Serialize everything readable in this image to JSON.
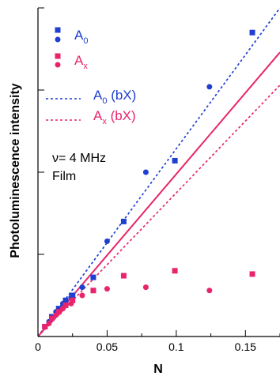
{
  "chart_data": {
    "type": "scatter",
    "xlabel": "N",
    "ylabel": "Photoluminescence intensity",
    "xlim": [
      0,
      0.175
    ],
    "ylim": [
      0,
      1.0
    ],
    "x_ticks": [
      {
        "value": 0,
        "label": "0"
      },
      {
        "value": 0.05,
        "label": "0.05"
      },
      {
        "value": 0.1,
        "label": "0.1"
      },
      {
        "value": 0.15,
        "label": "0.15"
      }
    ],
    "y_ticks": [
      0,
      0.25,
      0.5,
      0.75,
      1.0
    ],
    "x_minor_ticks": [
      0.025,
      0.075,
      0.125,
      0.175
    ],
    "colors": {
      "A0": "#1f3fd1",
      "Ax": "#e8246c"
    },
    "legend": {
      "A0_base": "A",
      "A0_sub": "0",
      "Ax_base": "A",
      "Ax_sub": "x",
      "A0_line_base": "A",
      "A0_line_sub": "0",
      "A0_line_suffix": " (bX)",
      "Ax_line_base": "A",
      "Ax_line_sub": "x",
      "Ax_line_suffix": " (bX)"
    },
    "annotation": {
      "line1": "ν= 4 MHz",
      "line2": "Film"
    },
    "series": [
      {
        "key": "A0_squares",
        "color": "#1f3fd1",
        "marker": "square",
        "x": [
          0.005,
          0.01,
          0.015,
          0.02,
          0.025,
          0.04,
          0.062,
          0.099,
          0.155
        ],
        "y": [
          0.03,
          0.06,
          0.085,
          0.11,
          0.125,
          0.18,
          0.35,
          0.535,
          0.925
        ]
      },
      {
        "key": "A0_circles",
        "color": "#1f3fd1",
        "marker": "circle",
        "x": [
          0.008,
          0.013,
          0.018,
          0.024,
          0.032,
          0.05,
          0.078,
          0.124
        ],
        "y": [
          0.045,
          0.075,
          0.1,
          0.12,
          0.15,
          0.29,
          0.5,
          0.76
        ]
      },
      {
        "key": "Ax_squares",
        "color": "#e8246c",
        "marker": "square",
        "x": [
          0.005,
          0.01,
          0.015,
          0.02,
          0.025,
          0.04,
          0.062,
          0.099,
          0.155
        ],
        "y": [
          0.03,
          0.055,
          0.075,
          0.095,
          0.11,
          0.14,
          0.185,
          0.2,
          0.19
        ]
      },
      {
        "key": "Ax_circles",
        "color": "#e8246c",
        "marker": "circle",
        "x": [
          0.008,
          0.013,
          0.018,
          0.024,
          0.032,
          0.05,
          0.078,
          0.124
        ],
        "y": [
          0.04,
          0.065,
          0.085,
          0.1,
          0.125,
          0.145,
          0.15,
          0.14
        ]
      }
    ],
    "lines": [
      {
        "key": "A0_bX",
        "color": "#1f3fd1",
        "style": "dashed",
        "x": [
          0,
          0.175
        ],
        "y": [
          0,
          1.0
        ]
      },
      {
        "key": "Ax_bX",
        "color": "#e8246c",
        "style": "dashed",
        "x": [
          0,
          0.175
        ],
        "y": [
          0,
          0.765
        ]
      },
      {
        "key": "Ax_solid",
        "color": "#e8246c",
        "style": "solid",
        "x": [
          0,
          0.175
        ],
        "y": [
          0,
          0.865
        ]
      }
    ]
  }
}
